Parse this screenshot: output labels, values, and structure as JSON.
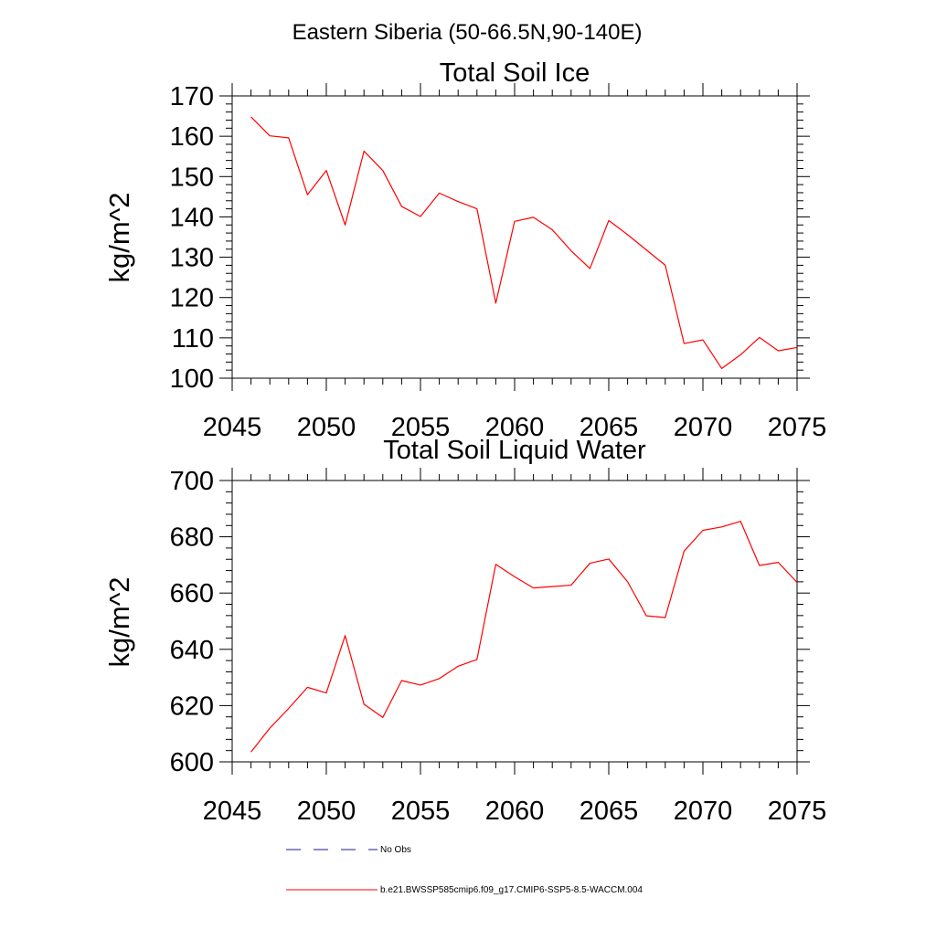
{
  "figure": {
    "title": "Eastern Siberia (50-66.5N,90-140E)"
  },
  "colors": {
    "model_line": "#ff0000",
    "obs_line": "#1a1a8c",
    "axes": "#000000"
  },
  "chart_data": [
    {
      "type": "line",
      "title": "Total Soil Ice",
      "xlabel": "",
      "ylabel": "kg/m^2",
      "xlim": [
        2045,
        2075
      ],
      "ylim": [
        100,
        170
      ],
      "xticks": [
        2045,
        2050,
        2055,
        2060,
        2065,
        2070,
        2075
      ],
      "yticks": [
        100,
        110,
        120,
        130,
        140,
        150,
        160,
        170
      ],
      "grid": false,
      "x": [
        2046,
        2047,
        2048,
        2049,
        2050,
        2051,
        2052,
        2053,
        2054,
        2055,
        2056,
        2057,
        2058,
        2059,
        2060,
        2061,
        2062,
        2063,
        2064,
        2065,
        2066,
        2067,
        2068,
        2069,
        2070,
        2071,
        2072,
        2073,
        2074,
        2075
      ],
      "series": [
        {
          "name": "b.e21.BWSSP585cmip6.f09_g17.CMIP6-SSP5-8.5-WACCM.004",
          "values": [
            164.8,
            160.1,
            159.6,
            145.5,
            151.5,
            138.0,
            156.3,
            151.5,
            142.6,
            140.1,
            145.9,
            143.8,
            142.0,
            118.6,
            138.9,
            139.9,
            136.8,
            131.6,
            127.2,
            139.1,
            135.6,
            131.8,
            128.0,
            108.6,
            109.5,
            102.4,
            105.8,
            110.1,
            106.8,
            107.6
          ]
        }
      ]
    },
    {
      "type": "line",
      "title": "Total Soil Liquid Water",
      "xlabel": "",
      "ylabel": "kg/m^2",
      "xlim": [
        2045,
        2075
      ],
      "ylim": [
        600,
        700
      ],
      "xticks": [
        2045,
        2050,
        2055,
        2060,
        2065,
        2070,
        2075
      ],
      "yticks": [
        600,
        620,
        640,
        660,
        680,
        700
      ],
      "grid": false,
      "x": [
        2046,
        2047,
        2048,
        2049,
        2050,
        2051,
        2052,
        2053,
        2054,
        2055,
        2056,
        2057,
        2058,
        2059,
        2060,
        2061,
        2062,
        2063,
        2064,
        2065,
        2066,
        2067,
        2068,
        2069,
        2070,
        2071,
        2072,
        2073,
        2074,
        2075
      ],
      "series": [
        {
          "name": "b.e21.BWSSP585cmip6.f09_g17.CMIP6-SSP5-8.5-WACCM.004",
          "values": [
            603.5,
            612.0,
            619.0,
            626.5,
            624.5,
            644.9,
            620.5,
            615.8,
            628.9,
            627.3,
            629.6,
            634.0,
            636.4,
            670.2,
            665.8,
            661.8,
            662.3,
            662.8,
            670.6,
            672.1,
            664.0,
            651.9,
            651.3,
            674.9,
            682.3,
            683.5,
            685.5,
            669.8,
            670.9,
            663.8
          ]
        }
      ]
    }
  ],
  "legend": {
    "placement": "bottom",
    "items": [
      {
        "label": "No Obs",
        "style": "dashed",
        "color": "#1a1a8c"
      },
      {
        "label": "b.e21.BWSSP585cmip6.f09_g17.CMIP6-SSP5-8.5-WACCM.004",
        "style": "solid",
        "color": "#ff0000"
      }
    ]
  }
}
